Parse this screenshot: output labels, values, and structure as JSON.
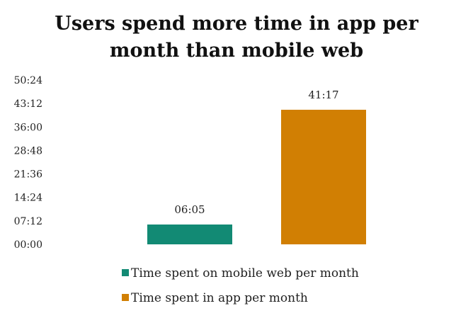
{
  "chart_data": {
    "type": "bar",
    "title": "Users spend more time in app per month than mobile web",
    "title_lines": [
      "Users spend more time in app per",
      "month than mobile web"
    ],
    "xlabel": "",
    "ylabel": "",
    "y_unit": "minutes:seconds",
    "ylim": [
      0,
      3024
    ],
    "y_ticks": [
      {
        "value": 0,
        "label": "00:00"
      },
      {
        "value": 432,
        "label": "07:12"
      },
      {
        "value": 864,
        "label": "14:24"
      },
      {
        "value": 1296,
        "label": "21:36"
      },
      {
        "value": 1728,
        "label": "28:48"
      },
      {
        "value": 2160,
        "label": "36:00"
      },
      {
        "value": 2592,
        "label": "43:12"
      },
      {
        "value": 3024,
        "label": "50:24"
      }
    ],
    "grid": false,
    "legend_position": "bottom",
    "series": [
      {
        "name": "Time spent on mobile web per month",
        "value": 365,
        "value_label": "06:05",
        "color": "#128a74"
      },
      {
        "name": "Time spent in app per month",
        "value": 2477,
        "value_label": "41:17",
        "color": "#d17f03"
      }
    ]
  }
}
